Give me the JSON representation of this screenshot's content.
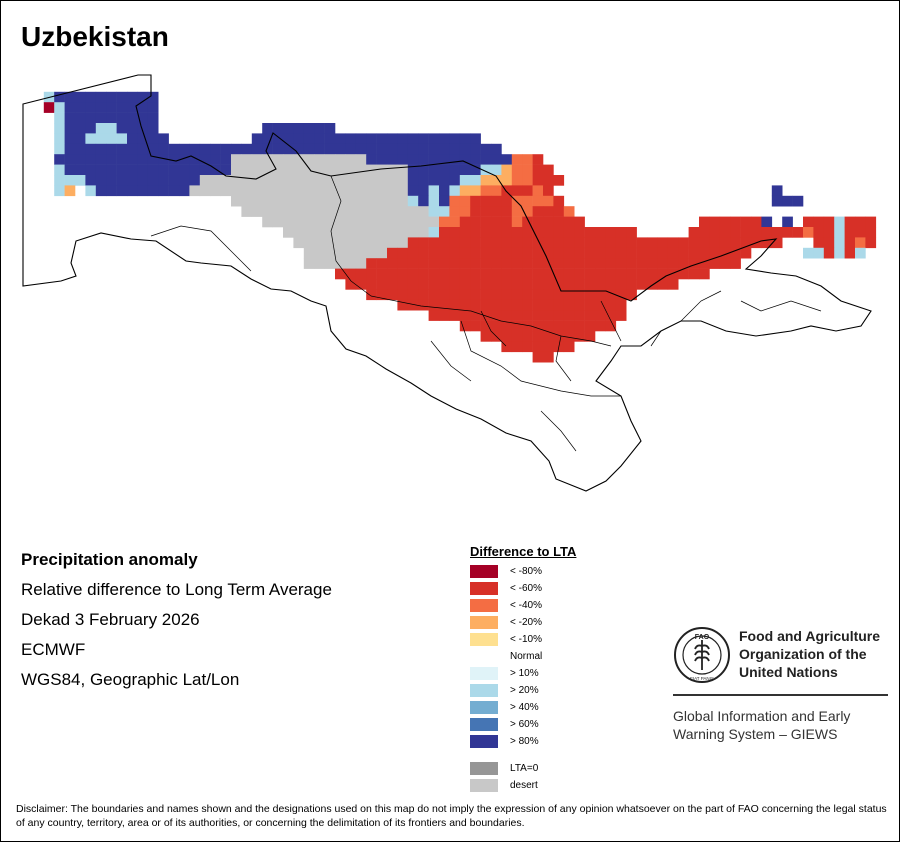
{
  "title": "Uzbekistan",
  "info": {
    "title": "Precipitation anomaly",
    "subtitle": "Relative difference to Long Term Average",
    "period": "Dekad 3 February 2026",
    "model": "ECMWF",
    "projection": "WGS84, Geographic Lat/Lon"
  },
  "legend": {
    "title": "Difference to LTA",
    "classes": [
      {
        "label": "< -80%",
        "color": "#a50026"
      },
      {
        "label": "< -60%",
        "color": "#d73027"
      },
      {
        "label": "< -40%",
        "color": "#f46d43"
      },
      {
        "label": "< -20%",
        "color": "#fdae61"
      },
      {
        "label": "< -10%",
        "color": "#fee090"
      },
      {
        "label": "Normal",
        "color": "#ffffff"
      },
      {
        "label": "> 10%",
        "color": "#e0f3f8"
      },
      {
        "label": "> 20%",
        "color": "#abd9e9"
      },
      {
        "label": "> 40%",
        "color": "#74add1"
      },
      {
        "label": "> 60%",
        "color": "#4575b4"
      },
      {
        "label": "> 80%",
        "color": "#313695"
      }
    ],
    "extra": [
      {
        "label": "LTA=0",
        "color": "#969696"
      },
      {
        "label": "desert",
        "color": "#c8c8c8"
      }
    ]
  },
  "organization": {
    "line1": "Food and Agriculture",
    "line2": "Organization of the",
    "line3": "United Nations",
    "logo_text": "FAO",
    "logo_motto": "FIAT PANIS"
  },
  "system": {
    "line1": "Global Information and Early",
    "line2": "Warning System – GIEWS"
  },
  "disclaimer": "Disclaimer: The boundaries and names shown and the designations used on this map do not imply the expression of any opinion whatsoever on the part of FAO concerning the legal status of any country, territory, area or of its authorities, or concerning the delimitation of its frontiers and boundaries.",
  "map_grid": {
    "rows": [
      "......................................................................",
      "......................................................................",
      "..cbbbbbbbbbb.............................................................",
      "..acbbbbbbbbb.............................................................",
      "...cbbbbbbbbb.............................................................",
      "...cbbbccbbbb..........bbbbbbb..........................................",
      "...cbbccccbbbb........bbbbbbbbbbbbbbbbbbbbbb..............................",
      "...cbbbbbbbbbbbbbbbbbbbbbbbbbbbbbbbbbbbbbbbbbb............................",
      "...bbbbbbbbbbbbbbbbbdddddddddddddbbbbbbbbbbbbbbkkj.........................",
      "...cbbbbbbbbbbbbbbbbdddddddddddddddddbbbbbbbccmkkjj.......................",
      "...cccbbbbbbbbbbbddddddddddddddddddddbbbbbccmmmkkjjj......................",
      "...cm.cbbbbbbbbbdddddddddddddddddddddbbcbcmmkkjjjkj.....................b...",
      "....................dddddddddddddddddcbcbkkjjjjkkkkj....................bbb..",
      ".....................ddddddddddddddddddcckkjjjjkkjjjk........................",
      ".......................dddddddddddddddddkkjjjjjkjjjjjj...........jjjjjjb.b.jjjcjjjc",
      ".........................ddddddddddddddcjjjjjjjjjjjjjjjjjjj.....jjjjjjjjjjjkjjcjjjjk",
      "..........................dddddddddddjjjjjjjjjjjjjjjjjjjjjjjjjjjjjjjjjjjj...jjcjkjj.",
      "...........................ddddddddjjjjjjjjjjjjjjjjjjjjjjjjjjjjjjjjjjj.....ccjcjc..",
      "...........................ddddddjjjjjjjjjjjjjjjjjjjjjjjjjjjjjjjjjjjj...............",
      "..............................jjjjjjjjjjjjjjjjjjjjjjjjjjjjjjjjjjjj..................",
      "...............................jjjjjjjjjjjjjjjjjjjjjjjjjjjjjjjj.....................",
      ".................................jjjjjjjjjjjjjjjjjjjjjjjjjj........................",
      "....................................jjjjjjjjjjjjjjjjjjjjjj.........................",
      ".......................................jjjjjjjjjjjjjjjjjjj.........................",
      "..........................................jjjjjjjjjjjjjjj..........................",
      "............................................jjjjjjjjjjj............................",
      "..............................................jjjjjjj.............................",
      ".................................................jj................................"
    ],
    "palette": {
      "a": "#a50026",
      "j": "#d73027",
      "k": "#f46d43",
      "m": "#fdae61",
      "n": "#fee090",
      "e": "#e0f3f8",
      "c": "#abd9e9",
      "f": "#74add1",
      "g": "#4575b4",
      "b": "#313695",
      "d": "#c8c8c8"
    }
  }
}
